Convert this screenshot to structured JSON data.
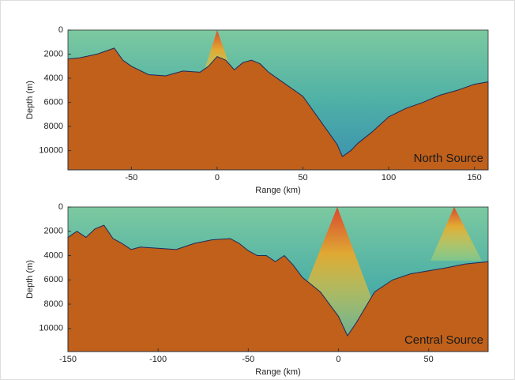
{
  "chart_data": [
    {
      "type": "area",
      "annotation": "North Source",
      "x_label": "Range (km)",
      "y_label": "Depth (m)",
      "xlim": [
        -87,
        158
      ],
      "ylim": [
        11600,
        0
      ],
      "xticks": [
        -50,
        0,
        50,
        100,
        150
      ],
      "yticks": [
        0,
        2000,
        4000,
        6000,
        8000,
        10000
      ],
      "color": "#c0601a",
      "x": [
        -87,
        -80,
        -70,
        -60,
        -55,
        -50,
        -40,
        -30,
        -20,
        -10,
        -5,
        0,
        5,
        10,
        15,
        20,
        25,
        30,
        35,
        40,
        50,
        60,
        70,
        73,
        78,
        82,
        90,
        100,
        110,
        120,
        130,
        140,
        150,
        158
      ],
      "values": [
        2400,
        2300,
        2000,
        1500,
        2500,
        3000,
        3700,
        3800,
        3400,
        3500,
        3000,
        2200,
        2500,
        3300,
        2700,
        2500,
        2800,
        3500,
        4000,
        4500,
        5500,
        7500,
        9500,
        10500,
        10000,
        9400,
        8500,
        7200,
        6500,
        6000,
        5400,
        5000,
        4500,
        4300
      ]
    },
    {
      "type": "area",
      "annotation": "Central Source",
      "x_label": "Range (km)",
      "y_label": "Depth (m)",
      "xlim": [
        -150,
        83
      ],
      "ylim": [
        11900,
        0
      ],
      "xticks": [
        -150,
        -100,
        -50,
        0,
        50
      ],
      "yticks": [
        0,
        2000,
        4000,
        6000,
        8000,
        10000
      ],
      "color": "#c0601a",
      "x": [
        -150,
        -145,
        -140,
        -135,
        -130,
        -125,
        -120,
        -115,
        -110,
        -100,
        -90,
        -80,
        -70,
        -60,
        -55,
        -50,
        -45,
        -40,
        -35,
        -30,
        -25,
        -20,
        -10,
        0,
        5,
        10,
        20,
        30,
        40,
        60,
        70,
        83
      ],
      "values": [
        2500,
        2000,
        2500,
        1800,
        1500,
        2600,
        3000,
        3500,
        3300,
        3400,
        3500,
        3000,
        2700,
        2600,
        3000,
        3600,
        4000,
        4000,
        4500,
        4000,
        4800,
        5800,
        7000,
        9000,
        10600,
        9500,
        7000,
        6000,
        5500,
        5000,
        4700,
        4500
      ]
    }
  ]
}
